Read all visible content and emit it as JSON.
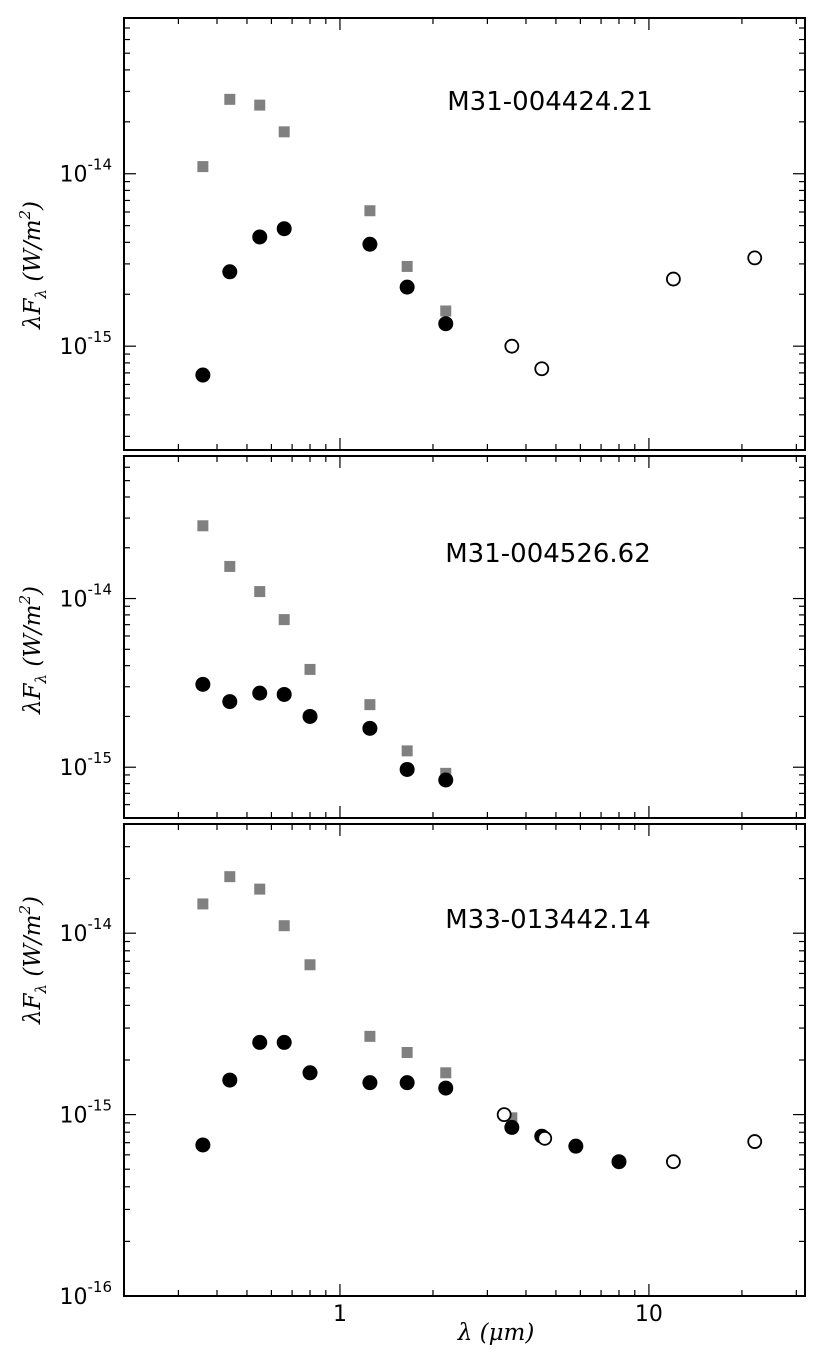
{
  "chart_data": [
    {
      "type": "scatter",
      "title": "M31-004424.21",
      "xlabel": "",
      "ylabel": "λF_λ (W/m^2)",
      "xscale": "log",
      "yscale": "log",
      "xlim": [
        0.2,
        32
      ],
      "ylim": [
        2.5e-16,
        8e-14
      ],
      "yticks": [
        {
          "value": 1e-14,
          "base": "10",
          "exp": "-14"
        },
        {
          "value": 1e-15,
          "base": "10",
          "exp": "-15"
        }
      ],
      "xticks": [],
      "series": [
        {
          "marker": "square-gray",
          "x": [
            0.36,
            0.44,
            0.55,
            0.66,
            1.25,
            1.65,
            2.2
          ],
          "y": [
            1.1e-14,
            2.7e-14,
            2.5e-14,
            1.75e-14,
            6.1e-15,
            2.9e-15,
            1.6e-15
          ]
        },
        {
          "marker": "filled-circle",
          "x": [
            0.36,
            0.44,
            0.55,
            0.66,
            1.25,
            1.65,
            2.2
          ],
          "y": [
            6.8e-16,
            2.7e-15,
            4.3e-15,
            4.8e-15,
            3.9e-15,
            2.2e-15,
            1.35e-15
          ]
        },
        {
          "marker": "open-circle",
          "x": [
            3.6,
            4.5,
            12.0,
            22.0
          ],
          "y": [
            1e-15,
            7.4e-16,
            2.45e-15,
            3.25e-15
          ]
        }
      ]
    },
    {
      "type": "scatter",
      "title": "M31-004526.62",
      "xlabel": "",
      "ylabel": "λF_λ (W/m^2)",
      "xscale": "log",
      "yscale": "log",
      "xlim": [
        0.2,
        32
      ],
      "ylim": [
        5e-16,
        7e-14
      ],
      "yticks": [
        {
          "value": 1e-14,
          "base": "10",
          "exp": "-14"
        },
        {
          "value": 1e-15,
          "base": "10",
          "exp": "-15"
        }
      ],
      "xticks": [],
      "series": [
        {
          "marker": "square-gray",
          "x": [
            0.36,
            0.44,
            0.55,
            0.66,
            0.8,
            1.25,
            1.65,
            2.2
          ],
          "y": [
            2.7e-14,
            1.55e-14,
            1.1e-14,
            7.5e-15,
            3.8e-15,
            2.35e-15,
            1.25e-15,
            9.2e-16
          ]
        },
        {
          "marker": "filled-circle",
          "x": [
            0.36,
            0.44,
            0.55,
            0.66,
            0.8,
            1.25,
            1.65,
            2.2
          ],
          "y": [
            3.1e-15,
            2.45e-15,
            2.75e-15,
            2.7e-15,
            2e-15,
            1.7e-15,
            9.7e-16,
            8.4e-16
          ]
        }
      ]
    },
    {
      "type": "scatter",
      "title": "M33-013442.14",
      "xlabel": "λ (μm)",
      "ylabel": "λF_λ (W/m^2)",
      "xscale": "log",
      "yscale": "log",
      "xlim": [
        0.2,
        32
      ],
      "ylim": [
        1e-16,
        4e-14
      ],
      "yticks": [
        {
          "value": 1e-14,
          "base": "10",
          "exp": "-14"
        },
        {
          "value": 1e-15,
          "base": "10",
          "exp": "-15"
        },
        {
          "value": 1e-16,
          "base": "10",
          "exp": "-16"
        }
      ],
      "xticks": [
        {
          "value": 1,
          "label": "1"
        },
        {
          "value": 10,
          "label": "10"
        }
      ],
      "series": [
        {
          "marker": "square-gray",
          "x": [
            0.36,
            0.44,
            0.55,
            0.66,
            0.8,
            1.25,
            1.65,
            2.2,
            3.6
          ],
          "y": [
            1.45e-14,
            2.05e-14,
            1.75e-14,
            1.1e-14,
            6.7e-15,
            2.7e-15,
            2.2e-15,
            1.7e-15,
            9.6e-16
          ]
        },
        {
          "marker": "filled-circle",
          "x": [
            0.36,
            0.44,
            0.55,
            0.66,
            0.8,
            1.25,
            1.65,
            2.2,
            3.6,
            4.5,
            5.8,
            8.0
          ],
          "y": [
            6.8e-16,
            1.55e-15,
            2.5e-15,
            2.5e-15,
            1.7e-15,
            1.5e-15,
            1.5e-15,
            1.4e-15,
            8.5e-16,
            7.6e-16,
            6.7e-16,
            5.5e-16
          ]
        },
        {
          "marker": "open-circle",
          "x": [
            3.4,
            4.6,
            12.0,
            22.0
          ],
          "y": [
            1e-15,
            7.4e-16,
            5.5e-16,
            7.1e-16
          ]
        }
      ]
    }
  ]
}
